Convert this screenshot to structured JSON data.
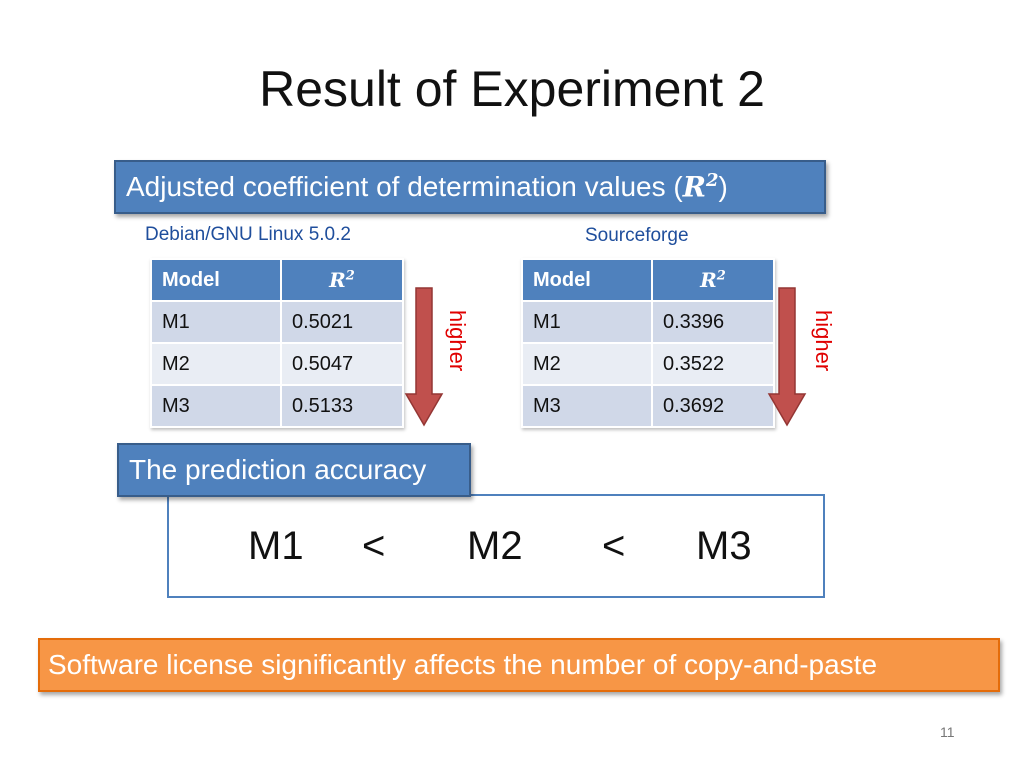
{
  "title": "Result of Experiment 2",
  "r2_banner": {
    "text": "Adjusted coefficient of determination values (",
    "symbol": "R",
    "power": "2",
    "close": ")"
  },
  "tables": [
    {
      "label": "Debian/GNU Linux 5.0.2",
      "header_model": "Model",
      "header_symbol": "R",
      "header_power": "2",
      "rows": [
        {
          "model": "M1",
          "value": "0.5021"
        },
        {
          "model": "M2",
          "value": "0.5047"
        },
        {
          "model": "M3",
          "value": "0.5133"
        }
      ],
      "arrow_label": "higher"
    },
    {
      "label": "Sourceforge",
      "header_model": "Model",
      "header_symbol": "R",
      "header_power": "2",
      "rows": [
        {
          "model": "M1",
          "value": "0.3396"
        },
        {
          "model": "M2",
          "value": "0.3522"
        },
        {
          "model": "M3",
          "value": "0.3692"
        }
      ],
      "arrow_label": "higher"
    }
  ],
  "accuracy_banner": "The prediction accuracy",
  "ranking": {
    "m1": "M1",
    "lt1": "<",
    "m2": "M2",
    "lt2": "<",
    "m3": "M3"
  },
  "conclusion": "Software license significantly affects the number of copy-and-paste",
  "page_number": "11",
  "colors": {
    "accent_blue": "#4f81bd",
    "accent_orange": "#f79646",
    "arrow_red": "#c0504d",
    "label_red": "#e00000"
  }
}
